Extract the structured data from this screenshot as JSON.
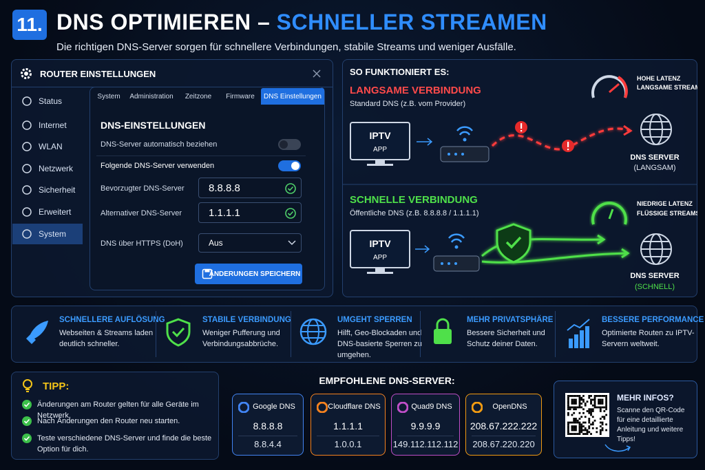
{
  "header": {
    "number": "11.",
    "title": "DNS OPTIMIEREN –",
    "title_highlight": "SCHNELLER STREAMEN",
    "subtitle": "Die richtigen DNS-Server sorgen für schnellere Verbindungen, stabile Streams und weniger Ausfälle."
  },
  "router": {
    "title": "ROUTER EINSTELLUNGEN",
    "sidebar": [
      "Status",
      "Internet",
      "WLAN",
      "Netzwerk",
      "Sicherheit",
      "Erweitert",
      "System"
    ],
    "tabs": [
      "System",
      "Administration",
      "Zeitzone",
      "Firmware",
      "DNS Einstellungen"
    ],
    "section_title": "DNS-EINSTELLUNGEN",
    "auto_label": "DNS-Server automatisch beziehen",
    "manual_label": "Folgende DNS-Server verwenden",
    "preferred_label": "Bevorzugter DNS-Server",
    "preferred_value": "8.8.8.8",
    "alternate_label": "Alternativer DNS-Server",
    "alternate_value": "1.1.1.1",
    "doh_label": "DNS über HTTPS (DoH)",
    "doh_value": "Aus",
    "save_button": "ÄNDERUNGEN SPEICHERN"
  },
  "how": {
    "title": "SO FUNKTIONIERT ES:",
    "slow": {
      "title": "LANGSAME VERBINDUNG",
      "subtitle": "Standard DNS (z.B. vom Provider)",
      "device": "IPTV",
      "device_sub": "APP",
      "latency": "HOHE LATENZ",
      "latency_sub": "LANGSAME STREAMS",
      "server": "DNS SERVER",
      "server_sub": "(LANGSAM)"
    },
    "fast": {
      "title": "SCHNELLE VERBINDUNG",
      "subtitle": "Öffentliche DNS (z.B. 8.8.8.8 / 1.1.1.1)",
      "device": "IPTV",
      "device_sub": "APP",
      "latency": "NIEDRIGE LATENZ",
      "latency_sub": "FLÜSSIGE STREAMS",
      "server": "DNS SERVER",
      "server_sub": "(SCHNELL)"
    }
  },
  "features": [
    {
      "title": "SCHNELLERE AUFLÖSUNG",
      "text": "Webseiten & Streams laden deutlich schneller."
    },
    {
      "title": "STABILE VERBINDUNG",
      "text": "Weniger Pufferung und Verbindungsabbrüche."
    },
    {
      "title": "UMGEHT SPERREN",
      "text": "Hilft, Geo-Blockaden und DNS-basierte Sperren zu umgehen."
    },
    {
      "title": "MEHR PRIVATSPHÄRE",
      "text": "Bessere Sicherheit und Schutz deiner Daten."
    },
    {
      "title": "BESSERE PERFORMANCE",
      "text": "Optimierte Routen zu IPTV-Servern weltweit."
    }
  ],
  "tip": {
    "title": "TIPP:",
    "items": [
      "Änderungen am Router gelten für alle Geräte im Netzwerk.",
      "Nach Änderungen den Router neu starten.",
      "Teste verschiedene DNS-Server und finde die beste Option für dich."
    ]
  },
  "recommended": {
    "title": "EMPFOHLENE DNS-SERVER:",
    "servers": [
      {
        "name": "Google DNS",
        "primary": "8.8.8.8",
        "secondary": "8.8.4.4"
      },
      {
        "name": "Cloudflare DNS",
        "primary": "1.1.1.1",
        "secondary": "1.0.0.1"
      },
      {
        "name": "Quad9 DNS",
        "primary": "9.9.9.9",
        "secondary": "149.112.112.112"
      },
      {
        "name": "OpenDNS",
        "primary": "208.67.222.222",
        "secondary": "208.67.220.220"
      }
    ]
  },
  "more": {
    "title": "MEHR INFOS?",
    "text": "Scanne den QR-Code für eine detaillierte Anleitung und weitere Tipps!"
  }
}
